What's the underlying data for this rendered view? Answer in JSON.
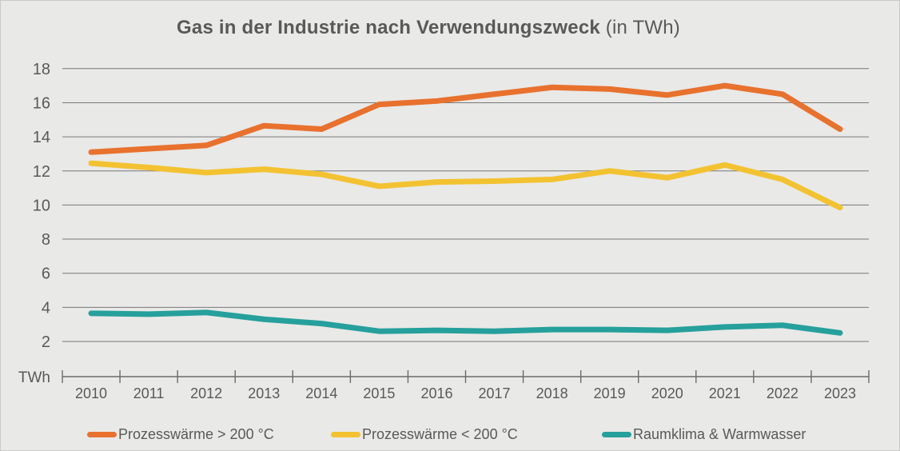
{
  "title": {
    "main": "Gas in der Industrie nach Verwendungszweck",
    "suffix": " (in TWh)"
  },
  "colors": {
    "background": "#e9e9e7",
    "text": "#595959",
    "gridline": "#787878",
    "axis": "#6b6b6b",
    "accent_orange": "#e8712e",
    "accent_yellow": "#f3c231",
    "accent_teal": "#26a09c"
  },
  "chart_data": {
    "type": "line",
    "title": "Gas in der Industrie nach Verwendungszweck (in TWh)",
    "x": [
      2010,
      2011,
      2012,
      2013,
      2014,
      2015,
      2016,
      2017,
      2018,
      2019,
      2020,
      2021,
      2022,
      2023
    ],
    "series": [
      {
        "name": "Prozesswärme > 200 °C",
        "color": "#e8712e",
        "values": [
          13.1,
          13.3,
          13.5,
          14.65,
          14.45,
          15.9,
          16.1,
          16.5,
          16.9,
          16.8,
          16.45,
          17.0,
          16.5,
          14.45
        ]
      },
      {
        "name": "Prozesswärme < 200 °C",
        "color": "#f3c231",
        "values": [
          12.45,
          12.2,
          11.9,
          12.1,
          11.8,
          11.1,
          11.35,
          11.4,
          11.5,
          12.0,
          11.6,
          12.35,
          11.5,
          9.85
        ]
      },
      {
        "name": "Raumklima & Warmwasser",
        "color": "#26a09c",
        "values": [
          3.65,
          3.6,
          3.7,
          3.3,
          3.05,
          2.6,
          2.65,
          2.6,
          2.7,
          2.7,
          2.65,
          2.85,
          2.95,
          2.5
        ]
      }
    ],
    "xlabel": "",
    "ylabel": "TWh",
    "ylim": [
      0,
      18
    ],
    "yticks": [
      2,
      4,
      6,
      8,
      10,
      12,
      14,
      16,
      18
    ],
    "grid": true,
    "legend_position": "bottom"
  }
}
